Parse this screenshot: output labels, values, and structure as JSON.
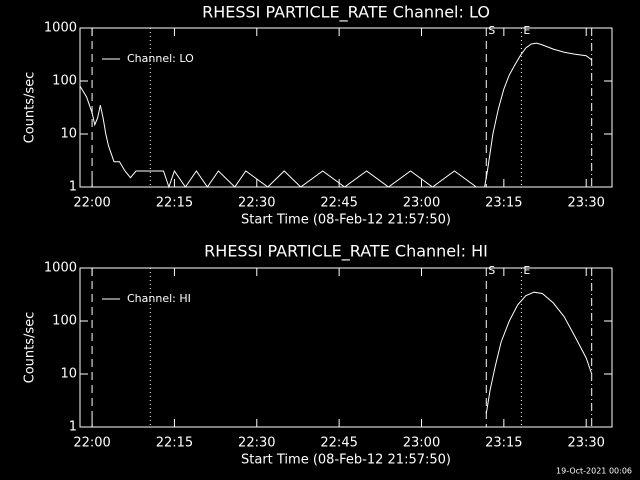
{
  "chart_data": [
    {
      "type": "line",
      "title": "RHESSI PARTICLE_RATE Channel: LO",
      "xlabel": "Start Time (08-Feb-12 21:57:50)",
      "ylabel": "Counts/sec",
      "log": true,
      "ylim": [
        1,
        1000
      ],
      "yticks": [
        1,
        10,
        100,
        1000
      ],
      "xlim": [
        -2.2,
        94.7
      ],
      "xticks": [
        {
          "value": 0,
          "label": "22:00"
        },
        {
          "value": 15,
          "label": "22:15"
        },
        {
          "value": 30,
          "label": "22:30"
        },
        {
          "value": 45,
          "label": "22:45"
        },
        {
          "value": 60,
          "label": "23:00"
        },
        {
          "value": 75,
          "label": "23:15"
        },
        {
          "value": 90,
          "label": "23:30"
        }
      ],
      "x": [
        -2.2,
        -1,
        0,
        0.5,
        1,
        1.5,
        2,
        2.5,
        3,
        4,
        5,
        6,
        7,
        8,
        10,
        13,
        14,
        15,
        17,
        19,
        21,
        23,
        26,
        28,
        32,
        35,
        38,
        42,
        46,
        50,
        54,
        58,
        62,
        66,
        70,
        71.5,
        72,
        73,
        74,
        75,
        76,
        77,
        78,
        79,
        80,
        81,
        82,
        84,
        86,
        88,
        90,
        91
      ],
      "series": [
        {
          "name": "Channel: LO",
          "color": "#ffffff",
          "values": [
            80,
            50,
            25,
            15,
            20,
            35,
            20,
            10,
            6,
            3,
            3,
            2,
            1.5,
            2,
            2,
            2,
            1,
            2,
            1,
            2,
            1,
            2,
            1,
            2,
            1,
            2,
            1,
            2,
            1,
            2,
            1,
            2,
            1,
            2,
            1,
            1,
            2,
            10,
            30,
            70,
            130,
            200,
            300,
            420,
            500,
            520,
            480,
            400,
            350,
            320,
            300,
            250
          ]
        }
      ],
      "markers": [
        {
          "x": 0,
          "style": "dashed"
        },
        {
          "x": 10.6,
          "style": "dotted"
        },
        {
          "x": 71.8,
          "style": "dashed",
          "label": "S"
        },
        {
          "x": 78.2,
          "style": "dotted",
          "label": "E"
        },
        {
          "x": 91,
          "style": "dashdot"
        }
      ]
    },
    {
      "type": "line",
      "title": "RHESSI PARTICLE_RATE Channel: HI",
      "xlabel": "Start Time (08-Feb-12 21:57:50)",
      "ylabel": "Counts/sec",
      "log": true,
      "ylim": [
        1,
        1000
      ],
      "yticks": [
        1,
        10,
        100,
        1000
      ],
      "xlim": [
        -2.2,
        94.7
      ],
      "xticks": [
        {
          "value": 0,
          "label": "22:00"
        },
        {
          "value": 15,
          "label": "22:15"
        },
        {
          "value": 30,
          "label": "22:30"
        },
        {
          "value": 45,
          "label": "22:45"
        },
        {
          "value": 60,
          "label": "23:00"
        },
        {
          "value": 75,
          "label": "23:15"
        },
        {
          "value": 90,
          "label": "23:30"
        }
      ],
      "x": [
        71.8,
        72.5,
        73.5,
        74.5,
        76,
        77.5,
        79,
        80.5,
        82,
        84,
        86,
        88,
        90,
        91
      ],
      "series": [
        {
          "name": "Channel: HI",
          "color": "#ffffff",
          "values": [
            1.8,
            5,
            15,
            40,
            100,
            200,
            300,
            350,
            330,
            220,
            120,
            50,
            20,
            10
          ]
        }
      ],
      "markers": [
        {
          "x": 0,
          "style": "dashed"
        },
        {
          "x": 10.6,
          "style": "dotted"
        },
        {
          "x": 71.8,
          "style": "dashed",
          "label": "S"
        },
        {
          "x": 78.2,
          "style": "dotted",
          "label": "E"
        },
        {
          "x": 91,
          "style": "dashdot"
        }
      ]
    }
  ],
  "footer": "19-Oct-2021 00:06"
}
